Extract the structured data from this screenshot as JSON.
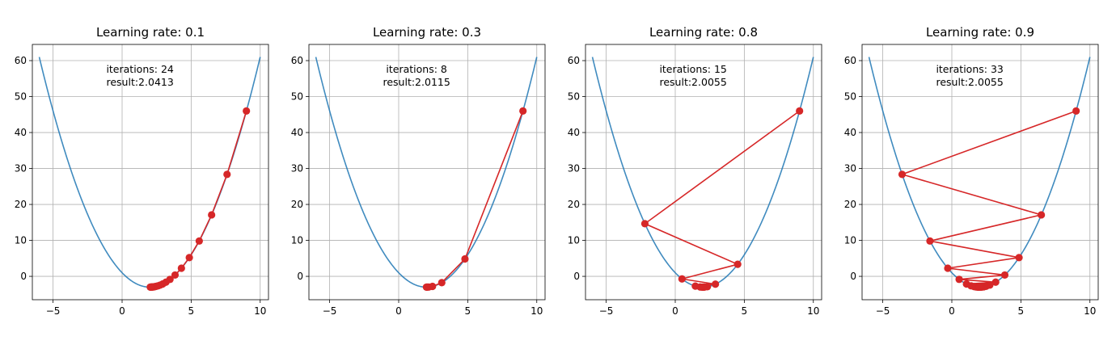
{
  "chart_data": [
    {
      "type": "line",
      "title": "Learning rate: 0.1",
      "annotation": [
        "iterations: 24",
        "result:2.0413"
      ],
      "xlim": [
        -6.5,
        10.6
      ],
      "ylim": [
        -6.5,
        64.5
      ],
      "xticks": [
        -5,
        0,
        5,
        10
      ],
      "yticks": [
        0,
        10,
        20,
        30,
        40,
        50,
        60
      ],
      "grid": true,
      "series": [
        {
          "curve": {
            "x_range": [
              -6,
              10
            ],
            "coefficients": [
              1,
              -4,
              1
            ]
          },
          "points_x": [
            9,
            7.6,
            6.48,
            5.584,
            4.867,
            4.294,
            3.835,
            3.468,
            3.174,
            2.939,
            2.751,
            2.601,
            2.481,
            2.385,
            2.308,
            2.246,
            2.197,
            2.158,
            2.126,
            2.101,
            2.081,
            2.065,
            2.052,
            2.041
          ],
          "points_y": [
            46,
            28.36,
            17.1,
            9.83,
            5.22,
            2.26,
            0.37,
            -0.84,
            -1.62,
            -2.12,
            -2.44,
            -2.64,
            -2.77,
            -2.85,
            -2.91,
            -2.94,
            -2.96,
            -2.98,
            -2.98,
            -2.99,
            -2.99,
            -3.0,
            -3.0,
            -3.0
          ]
        }
      ]
    },
    {
      "type": "line",
      "title": "Learning rate: 0.3",
      "annotation": [
        "iterations: 8",
        "result:2.0115"
      ],
      "xlim": [
        -6.5,
        10.6
      ],
      "ylim": [
        -6.5,
        64.5
      ],
      "xticks": [
        -5,
        0,
        5,
        10
      ],
      "yticks": [
        0,
        10,
        20,
        30,
        40,
        50,
        60
      ],
      "grid": true,
      "series": [
        {
          "curve": {
            "x_range": [
              -6,
              10
            ],
            "coefficients": [
              1,
              -4,
              1
            ]
          },
          "points_x": [
            9,
            4.8,
            3.12,
            2.448,
            2.179,
            2.072,
            2.029,
            2.0115
          ],
          "points_y": [
            46,
            4.84,
            -1.75,
            -2.8,
            -2.97,
            -2.99,
            -3.0,
            -3.0
          ]
        }
      ]
    },
    {
      "type": "line",
      "title": "Learning rate: 0.8",
      "annotation": [
        "iterations: 15",
        "result:2.0055"
      ],
      "xlim": [
        -6.5,
        10.6
      ],
      "ylim": [
        -6.5,
        64.5
      ],
      "xticks": [
        -5,
        0,
        5,
        10
      ],
      "yticks": [
        0,
        10,
        20,
        30,
        40,
        50,
        60
      ],
      "grid": true,
      "series": [
        {
          "curve": {
            "x_range": [
              -6,
              10
            ],
            "coefficients": [
              1,
              -4,
              1
            ]
          },
          "points_x": [
            9,
            -2.2,
            4.52,
            0.488,
            2.907,
            1.456,
            2.326,
            1.804,
            2.117,
            1.93,
            2.042,
            1.975,
            2.015,
            1.991,
            2.0055
          ],
          "points_y": [
            46,
            14.64,
            3.35,
            -0.71,
            -2.18,
            -2.7,
            -2.89,
            -2.96,
            -2.99,
            -3.0,
            -3.0,
            -3.0,
            -3.0,
            -3.0,
            -3.0
          ]
        }
      ]
    },
    {
      "type": "line",
      "title": "Learning rate: 0.9",
      "annotation": [
        "iterations: 33",
        "result:2.0055"
      ],
      "xlim": [
        -6.5,
        10.6
      ],
      "ylim": [
        -6.5,
        64.5
      ],
      "xticks": [
        -5,
        0,
        5,
        10
      ],
      "yticks": [
        0,
        10,
        20,
        30,
        40,
        50,
        60
      ],
      "grid": true,
      "series": [
        {
          "curve": {
            "x_range": [
              -6,
              10
            ],
            "coefficients": [
              1,
              -4,
              1
            ]
          },
          "points_x": [
            9,
            -3.6,
            6.48,
            -1.584,
            4.867,
            -0.294,
            3.835,
            0.532,
            3.174,
            1.061,
            2.751,
            1.399,
            2.481,
            1.615,
            2.308,
            1.754,
            2.197,
            1.842,
            2.126,
            1.899,
            2.081,
            1.935,
            2.052,
            1.958,
            2.033,
            1.973,
            2.021,
            1.983,
            2.014,
            1.989,
            2.009,
            1.993,
            2.0055
          ],
          "points_y": [
            46,
            28.36,
            17.1,
            9.83,
            5.22,
            2.26,
            0.37,
            -0.84,
            -1.62,
            -2.12,
            -2.44,
            -2.64,
            -2.77,
            -2.85,
            -2.91,
            -2.94,
            -2.96,
            -2.98,
            -2.98,
            -2.99,
            -2.99,
            -3.0,
            -3.0,
            -3.0,
            -3.0,
            -3.0,
            -3.0,
            -3.0,
            -3.0,
            -3.0,
            -3.0,
            -3.0,
            -3.0
          ]
        }
      ]
    }
  ]
}
